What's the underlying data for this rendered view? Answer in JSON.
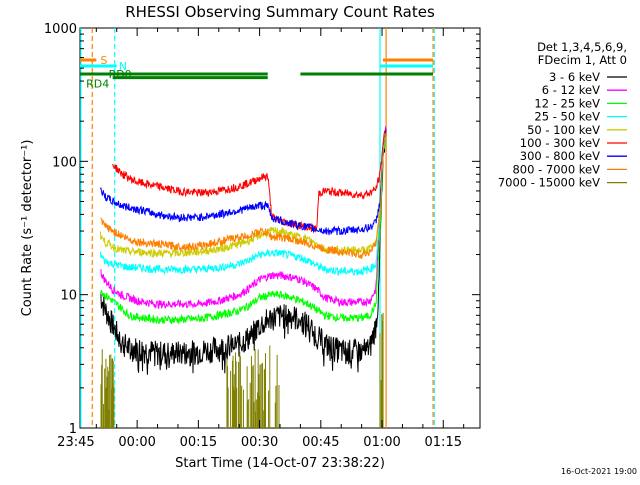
{
  "chart_data": {
    "type": "line",
    "title": "RHESSI Observing Summary Count Rates",
    "xlabel": "Start Time (14-Oct-07 23:38:22)",
    "ylabel": "Count Rate (s⁻¹ detector⁻¹)",
    "yscale": "log",
    "ylim": [
      1,
      1000
    ],
    "xlim_minutes": [
      -14,
      84
    ],
    "y_ticks": [
      "1",
      "10",
      "100",
      "1000"
    ],
    "x_ticks": [
      {
        "label": "23:45",
        "min": -15
      },
      {
        "label": "00:00",
        "min": 0
      },
      {
        "label": "00:15",
        "min": 15
      },
      {
        "label": "00:30",
        "min": 30
      },
      {
        "label": "00:45",
        "min": 45
      },
      {
        "label": "01:00",
        "min": 60
      },
      {
        "label": "01:15",
        "min": 75
      }
    ],
    "legend_header": [
      "Det 1,3,4,5,6,9,",
      "FDecim 1, Att 0"
    ],
    "series": [
      {
        "name": "3 - 6 keV",
        "color": "#000000",
        "x": [
          -9,
          -8,
          -6,
          -4,
          -2,
          0,
          5,
          10,
          15,
          20,
          25,
          28,
          30,
          33,
          35,
          38,
          40,
          42,
          44,
          46,
          50,
          55,
          57,
          58.5,
          59.2,
          59.5,
          60.3,
          61
        ],
        "y": [
          10,
          8,
          6,
          4.5,
          4,
          4,
          3.7,
          3.7,
          3.8,
          4,
          4.3,
          5,
          6,
          6.8,
          7,
          7,
          6.5,
          6,
          5,
          4.3,
          3.8,
          3.8,
          4,
          6,
          10,
          25,
          100,
          200
        ]
      },
      {
        "name": "6 - 12 keV",
        "color": "#ff00ff",
        "x": [
          -9,
          -8,
          -6,
          -4,
          -2,
          0,
          5,
          10,
          15,
          20,
          25,
          28,
          30,
          33,
          35,
          38,
          40,
          42,
          44,
          46,
          50,
          55,
          57,
          58.5,
          59.5,
          60.3,
          61
        ],
        "y": [
          15,
          13,
          11,
          10,
          9.5,
          9,
          8.5,
          8.5,
          8.5,
          9,
          10,
          11.5,
          13,
          14,
          14,
          13.5,
          13,
          12,
          11,
          9.5,
          8.8,
          8.8,
          9,
          11,
          40,
          150,
          180
        ]
      },
      {
        "name": "12 - 25 keV",
        "color": "#00ff00",
        "x": [
          -9,
          -8,
          -6,
          -4,
          -2,
          0,
          5,
          10,
          15,
          20,
          25,
          28,
          30,
          33,
          35,
          38,
          40,
          42,
          44,
          46,
          50,
          55,
          57,
          58.5,
          59.5,
          60.3,
          61
        ],
        "y": [
          11,
          10,
          9,
          8,
          7,
          6.8,
          6.5,
          6.5,
          6.6,
          7,
          7.6,
          8.5,
          9.5,
          10,
          10,
          9.5,
          9,
          8.5,
          7.7,
          7,
          6.7,
          6.7,
          7,
          8.5,
          30,
          120,
          150
        ]
      },
      {
        "name": "25 - 50 keV",
        "color": "#00ffff",
        "x": [
          -9,
          -8,
          -6,
          -4,
          -2,
          0,
          5,
          10,
          15,
          20,
          25,
          28,
          30,
          33,
          35,
          38,
          40,
          42,
          44,
          46,
          50,
          55,
          57,
          58.5,
          59.5,
          60.3,
          61
        ],
        "y": [
          20,
          18,
          17,
          16.5,
          16,
          16,
          15.5,
          15.5,
          15.5,
          16,
          17,
          18.5,
          20,
          20.5,
          20.5,
          19.5,
          19,
          18,
          16.5,
          15.5,
          15,
          15,
          15.5,
          17,
          40,
          130,
          160
        ]
      },
      {
        "name": "50 - 100 keV",
        "color": "#cccc00",
        "x": [
          -9,
          -8,
          -6,
          -4,
          -2,
          0,
          5,
          10,
          15,
          20,
          25,
          28,
          30,
          33,
          35,
          38,
          40,
          42,
          44,
          46,
          50,
          55,
          57,
          58.5,
          59.5,
          60.3,
          61
        ],
        "y": [
          28,
          25,
          23,
          21.5,
          21,
          21,
          20.5,
          20.5,
          21,
          22,
          24,
          26,
          28,
          30,
          30,
          28,
          27,
          26,
          24,
          22,
          21.5,
          21.5,
          22,
          24,
          50,
          140,
          170
        ]
      },
      {
        "name": "100 - 300 keV",
        "color": "#ff0000",
        "x": [
          -6,
          -4,
          -2,
          0,
          5,
          10,
          15,
          20,
          25,
          28,
          30,
          32,
          33,
          35,
          38,
          40,
          42,
          44,
          44.5,
          46,
          50,
          55,
          57,
          58.5,
          59.5,
          60.3,
          61
        ],
        "y": [
          95,
          82,
          75,
          70,
          65,
          60,
          58,
          60,
          65,
          70,
          75,
          78,
          38,
          36,
          34,
          33,
          32,
          31,
          58,
          60,
          58,
          56,
          58,
          62,
          80,
          140,
          190
        ]
      },
      {
        "name": "300 - 800 keV",
        "color": "#0000ff",
        "x": [
          -9,
          -8,
          -6,
          -4,
          -2,
          0,
          5,
          10,
          15,
          20,
          25,
          28,
          30,
          32,
          33,
          35,
          38,
          40,
          42,
          44,
          46,
          50,
          55,
          57,
          58.5,
          59.5,
          60.3,
          61
        ],
        "y": [
          62,
          55,
          50,
          47,
          45,
          44,
          40,
          38,
          38,
          40,
          43,
          45,
          47,
          46,
          38,
          36,
          34,
          33,
          32,
          31,
          30,
          30,
          31,
          32,
          35,
          50,
          130,
          170
        ]
      },
      {
        "name": "800 - 7000 keV",
        "color": "#ff8000",
        "x": [
          -9,
          -8,
          -6,
          -4,
          -2,
          0,
          5,
          10,
          15,
          20,
          25,
          28,
          30,
          32,
          33,
          35,
          38,
          40,
          42,
          44,
          46,
          50,
          55,
          57,
          58.5,
          59.5,
          60.3,
          61
        ],
        "y": [
          36,
          33,
          30,
          28,
          26,
          25,
          24,
          23,
          23,
          25,
          27,
          28,
          30,
          29,
          27,
          27,
          26,
          25,
          24,
          23,
          22,
          21,
          20,
          21,
          24,
          40,
          130,
          160
        ]
      },
      {
        "name": "7000 - 15000 keV",
        "color": "#808000",
        "x": [],
        "y": []
      }
    ],
    "state_bars": [
      {
        "label": "S",
        "color": "#ff8000",
        "level_frac": 0.92,
        "segments": [
          [
            -14,
            -10
          ],
          [
            60.2,
            72.5
          ]
        ]
      },
      {
        "label": "N",
        "color": "#00ffff",
        "level_frac": 0.905,
        "segments": [
          [
            -14,
            -5
          ],
          [
            59.5,
            72.5
          ]
        ]
      },
      {
        "label": "RD0",
        "color": "#008000",
        "level_frac": 0.885,
        "segments": [
          [
            -14,
            32
          ],
          [
            40,
            72.5
          ]
        ]
      },
      {
        "label": "RD4",
        "color": "#008000",
        "level_frac": 0.876,
        "segments": [
          [
            -6,
            32
          ]
        ]
      }
    ],
    "vertical_lines": [
      {
        "min": -13.8,
        "color": "#00ffff",
        "style": "solid"
      },
      {
        "min": -11,
        "color": "#ff8000",
        "style": "dashed"
      },
      {
        "min": -5.5,
        "color": "#00ffff",
        "style": "dashed"
      },
      {
        "min": 59.5,
        "color": "#00ffff",
        "style": "solid"
      },
      {
        "min": 61,
        "color": "#ff8000",
        "style": "solid"
      },
      {
        "min": 72.5,
        "color": "#ff8000",
        "style": "dashed"
      },
      {
        "min": 72.8,
        "color": "#00ffff",
        "style": "dashed"
      }
    ]
  },
  "footer": {
    "timestamp": "16-Oct-2021 19:00"
  }
}
